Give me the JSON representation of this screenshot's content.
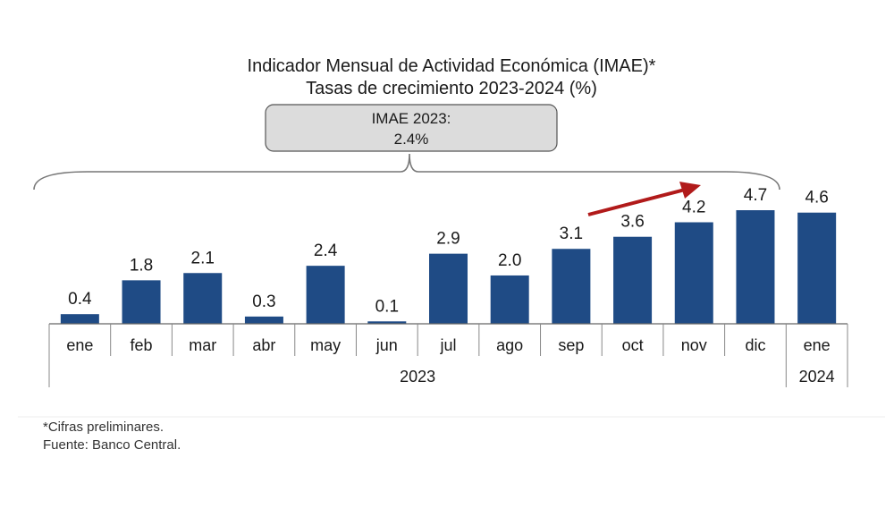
{
  "chart_data": {
    "type": "bar",
    "title": "Indicador Mensual de Actividad Económica (IMAE)*",
    "subtitle": "Tasas de crecimiento 2023-2024 (%)",
    "categories": [
      "ene",
      "feb",
      "mar",
      "abr",
      "may",
      "jun",
      "jul",
      "ago",
      "sep",
      "oct",
      "nov",
      "dic",
      "ene"
    ],
    "values": [
      0.4,
      1.8,
      2.1,
      0.3,
      2.4,
      0.1,
      2.9,
      2.0,
      3.1,
      3.6,
      4.2,
      4.7,
      4.6
    ],
    "value_labels": [
      "0.4",
      "1.8",
      "2.1",
      "0.3",
      "2.4",
      "0.1",
      "2.9",
      "2.0",
      "3.1",
      "3.6",
      "4.2",
      "4.7",
      "4.6"
    ],
    "year_groups": [
      {
        "label": "2023",
        "start": 0,
        "end": 11
      },
      {
        "label": "2024",
        "start": 12,
        "end": 12
      }
    ],
    "ylim": [
      0,
      5.2
    ],
    "grid": false,
    "bar_color": "#1f4b85",
    "arrow_color": "#b11a1a",
    "annotation": {
      "line1": "IMAE 2023:",
      "line2": "2.4%",
      "spans": [
        0,
        11
      ]
    }
  },
  "footnotes": {
    "note": "*Cifras preliminares.",
    "source": "Fuente: Banco Central."
  }
}
